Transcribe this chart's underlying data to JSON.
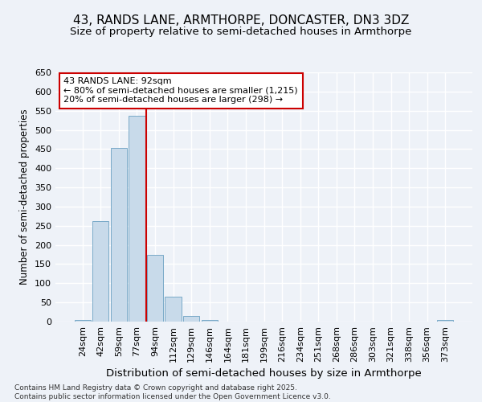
{
  "title1": "43, RANDS LANE, ARMTHORPE, DONCASTER, DN3 3DZ",
  "title2": "Size of property relative to semi-detached houses in Armthorpe",
  "xlabel": "Distribution of semi-detached houses by size in Armthorpe",
  "ylabel": "Number of semi-detached properties",
  "categories": [
    "24sqm",
    "42sqm",
    "59sqm",
    "77sqm",
    "94sqm",
    "112sqm",
    "129sqm",
    "146sqm",
    "164sqm",
    "181sqm",
    "199sqm",
    "216sqm",
    "234sqm",
    "251sqm",
    "268sqm",
    "286sqm",
    "303sqm",
    "321sqm",
    "338sqm",
    "356sqm",
    "373sqm"
  ],
  "values": [
    5,
    262,
    452,
    537,
    175,
    65,
    15,
    5,
    0,
    0,
    0,
    0,
    0,
    0,
    0,
    0,
    0,
    0,
    0,
    0,
    5
  ],
  "bar_color": "#c8daea",
  "bar_edge_color": "#7aaac8",
  "vline_color": "#cc0000",
  "vline_x_index": 4,
  "annotation_text": "43 RANDS LANE: 92sqm\n← 80% of semi-detached houses are smaller (1,215)\n20% of semi-detached houses are larger (298) →",
  "annotation_box_color": "#ffffff",
  "annotation_box_edge": "#cc0000",
  "ylim": [
    0,
    650
  ],
  "yticks": [
    0,
    50,
    100,
    150,
    200,
    250,
    300,
    350,
    400,
    450,
    500,
    550,
    600,
    650
  ],
  "background_color": "#eef2f8",
  "grid_color": "#ffffff",
  "footer": "Contains HM Land Registry data © Crown copyright and database right 2025.\nContains public sector information licensed under the Open Government Licence v3.0.",
  "title1_fontsize": 11,
  "title2_fontsize": 9.5,
  "xlabel_fontsize": 9.5,
  "ylabel_fontsize": 8.5,
  "tick_fontsize": 8,
  "annotation_fontsize": 8,
  "footer_fontsize": 6.5
}
